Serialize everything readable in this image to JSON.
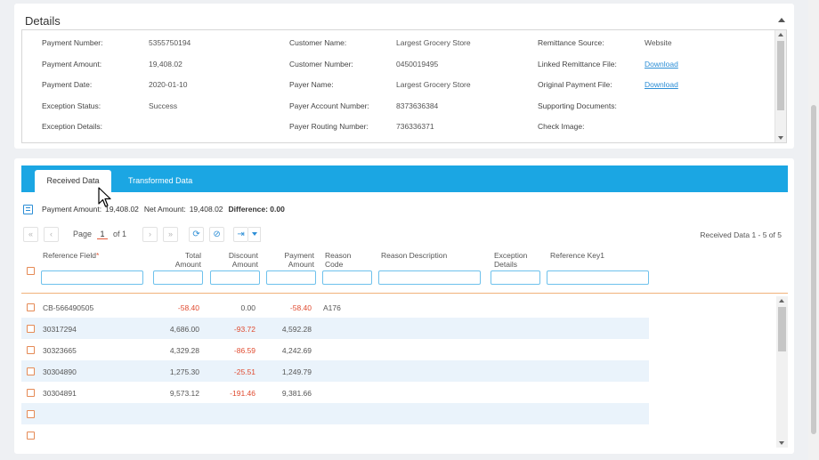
{
  "details": {
    "title": "Details",
    "fields": [
      {
        "label": "Payment Number:",
        "value": "5355750194"
      },
      {
        "label": "Payment Amount:",
        "value": "19,408.02"
      },
      {
        "label": "Payment Date:",
        "value": "2020-01-10"
      },
      {
        "label": "Exception Status:",
        "value": "Success"
      },
      {
        "label": "Exception Details:",
        "value": ""
      },
      {
        "label": "Customer Name:",
        "value": "Largest Grocery Store"
      },
      {
        "label": "Customer Number:",
        "value": "0450019495"
      },
      {
        "label": "Payer Name:",
        "value": "Largest Grocery Store"
      },
      {
        "label": "Payer Account Number:",
        "value": "8373636384"
      },
      {
        "label": "Payer Routing Number:",
        "value": "736336371"
      },
      {
        "label": "Remittance Source:",
        "value": "Website"
      },
      {
        "label": "Linked Remittance File:",
        "value": "Download"
      },
      {
        "label": "Original Payment File:",
        "value": "Download"
      },
      {
        "label": "Supporting Documents:",
        "value": ""
      },
      {
        "label": "Check Image:",
        "value": ""
      }
    ]
  },
  "tabs": {
    "received": "Received Data",
    "transformed": "Transformed Data"
  },
  "summary": {
    "payment_amount_label": "Payment Amount:",
    "payment_amount": "19,408.02",
    "net_amount_label": "Net Amount:",
    "net_amount": "19,408.02",
    "difference": "Difference: 0.00"
  },
  "pager": {
    "page_label": "Page",
    "page_value": "1",
    "of_label": "of 1",
    "record_count": "Received Data 1 - 5 of 5"
  },
  "columns": [
    {
      "label": "Reference Field",
      "required": "*"
    },
    {
      "label": "Total Amount"
    },
    {
      "label": "Discount Amount"
    },
    {
      "label": "Payment Amount"
    },
    {
      "label": "Reason Code"
    },
    {
      "label": "Reason Description"
    },
    {
      "label": "Exception Details"
    },
    {
      "label": "Reference Key1"
    }
  ],
  "rows": [
    {
      "ref": "CB-566490505",
      "total": "-58.40",
      "discount": "0.00",
      "payment": "-58.40",
      "reason": "A176"
    },
    {
      "ref": "30317294",
      "total": "4,686.00",
      "discount": "-93.72",
      "payment": "4,592.28",
      "reason": ""
    },
    {
      "ref": "30323665",
      "total": "4,329.28",
      "discount": "-86.59",
      "payment": "4,242.69",
      "reason": ""
    },
    {
      "ref": "30304890",
      "total": "1,275.30",
      "discount": "-25.51",
      "payment": "1,249.79",
      "reason": ""
    },
    {
      "ref": "30304891",
      "total": "9,573.12",
      "discount": "-191.46",
      "payment": "9,381.66",
      "reason": ""
    },
    {
      "ref": "",
      "total": "",
      "discount": "",
      "payment": "",
      "reason": ""
    },
    {
      "ref": "",
      "total": "",
      "discount": "",
      "payment": "",
      "reason": ""
    }
  ],
  "colors": {
    "accent": "#1ba6e3",
    "negative": "#e04a2f",
    "link": "#2c8ed6",
    "checkbox": "#e58a55"
  }
}
